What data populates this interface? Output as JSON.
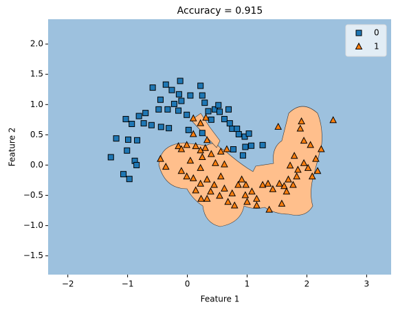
{
  "chart_data": {
    "type": "scatter",
    "title": "Accuracy = 0.915",
    "x_label": "Feature 1",
    "y_label": "Feature 2",
    "xlim": [
      -2.33,
      3.41
    ],
    "ylim": [
      -1.81,
      2.41
    ],
    "xticks": [
      {
        "value": -2,
        "label": "−2"
      },
      {
        "value": -1,
        "label": "−1"
      },
      0,
      1,
      2,
      3
    ],
    "yticks": [
      {
        "value": -1.5,
        "label": "−1.5"
      },
      {
        "value": -1.0,
        "label": "−1.0"
      },
      {
        "value": -0.5,
        "label": "−0.5"
      },
      {
        "value": 0,
        "label": "0.0"
      },
      {
        "value": 0.5,
        "label": "0.5"
      },
      {
        "value": 1.0,
        "label": "1.0"
      },
      {
        "value": 1.5,
        "label": "1.5"
      },
      {
        "value": 2.0,
        "label": "2.0"
      }
    ],
    "legend": "upper right",
    "series": [
      {
        "name": "0",
        "color": "#1f77b4",
        "marker": "square",
        "x": [
          -1.28,
          -1.19,
          -1.03,
          -0.93,
          -1.01,
          -0.99,
          -0.84,
          -0.88,
          -0.85,
          -1.07,
          -0.97,
          -0.81,
          -0.73,
          -0.7,
          -0.6,
          -0.58,
          -0.48,
          -0.45,
          -0.44,
          -0.36,
          -0.33,
          -0.31,
          -0.26,
          -0.22,
          -0.14,
          -0.12,
          -0.1,
          -0.15,
          -0.01,
          0.02,
          0.22,
          0.25,
          0.29,
          0.35,
          0.4,
          0.46,
          0.52,
          0.54,
          0.62,
          0.69,
          0.71,
          0.75,
          0.83,
          0.86,
          0.96,
          1.03,
          0.97,
          0.93,
          1.26,
          1.07,
          0.25,
          0.77,
          0.05
        ],
        "values": [
          0.13,
          0.44,
          0.76,
          0.68,
          0.24,
          0.42,
          0.41,
          0.07,
          0.0,
          -0.15,
          -0.23,
          0.81,
          0.69,
          0.86,
          0.66,
          1.28,
          0.92,
          1.08,
          0.63,
          1.33,
          0.92,
          0.61,
          1.24,
          1.01,
          1.17,
          1.39,
          1.06,
          0.9,
          0.83,
          0.58,
          1.31,
          1.15,
          1.03,
          0.89,
          0.75,
          0.92,
          0.99,
          0.88,
          0.76,
          0.92,
          0.69,
          0.6,
          0.6,
          0.51,
          0.47,
          0.52,
          0.3,
          0.16,
          0.33,
          0.32,
          0.53,
          0.26,
          1.15
        ]
      },
      {
        "name": "1",
        "color": "#ff7f0e",
        "marker": "triangle",
        "x": [
          -0.45,
          -0.36,
          -0.15,
          -0.1,
          -0.01,
          0.14,
          0.33,
          0.3,
          0.22,
          0.05,
          -0.1,
          -0.01,
          0.1,
          0.22,
          0.25,
          0.4,
          0.47,
          0.56,
          0.66,
          0.62,
          0.56,
          0.33,
          0.22,
          0.14,
          0.23,
          0.33,
          0.39,
          0.45,
          0.54,
          0.62,
          0.68,
          0.79,
          0.75,
          0.85,
          0.91,
          0.97,
          1.0,
          1.08,
          1.16,
          1.26,
          1.35,
          1.43,
          1.54,
          1.62,
          1.69,
          1.77,
          1.83,
          1.85,
          1.72,
          1.79,
          1.95,
          2.02,
          2.09,
          2.18,
          2.15,
          2.06,
          1.95,
          1.89,
          1.91,
          1.52,
          2.44,
          1.66,
          1.58,
          1.37,
          1.16,
          0.98,
          0.1,
          0.22,
          0.31,
          0.1,
          2.24
        ],
        "values": [
          0.1,
          -0.03,
          0.31,
          0.26,
          0.33,
          0.31,
          0.41,
          0.28,
          0.24,
          0.07,
          -0.1,
          -0.19,
          -0.22,
          -0.05,
          0.13,
          0.18,
          0.03,
          0.22,
          0.26,
          0.01,
          -0.19,
          -0.24,
          -0.31,
          -0.42,
          -0.56,
          -0.56,
          -0.44,
          -0.33,
          -0.51,
          -0.39,
          -0.61,
          -0.67,
          -0.47,
          -0.33,
          -0.24,
          -0.5,
          -0.61,
          -0.44,
          -0.56,
          -0.33,
          -0.31,
          -0.4,
          -0.31,
          -0.35,
          -0.24,
          -0.33,
          -0.19,
          -0.08,
          -0.01,
          0.15,
          0.03,
          -0.05,
          -0.19,
          -0.1,
          0.1,
          0.33,
          0.4,
          0.6,
          0.72,
          0.63,
          0.74,
          -0.44,
          -0.64,
          -0.74,
          -0.67,
          -0.33,
          0.51,
          0.69,
          0.78,
          0.77,
          0.26
        ]
      }
    ]
  }
}
